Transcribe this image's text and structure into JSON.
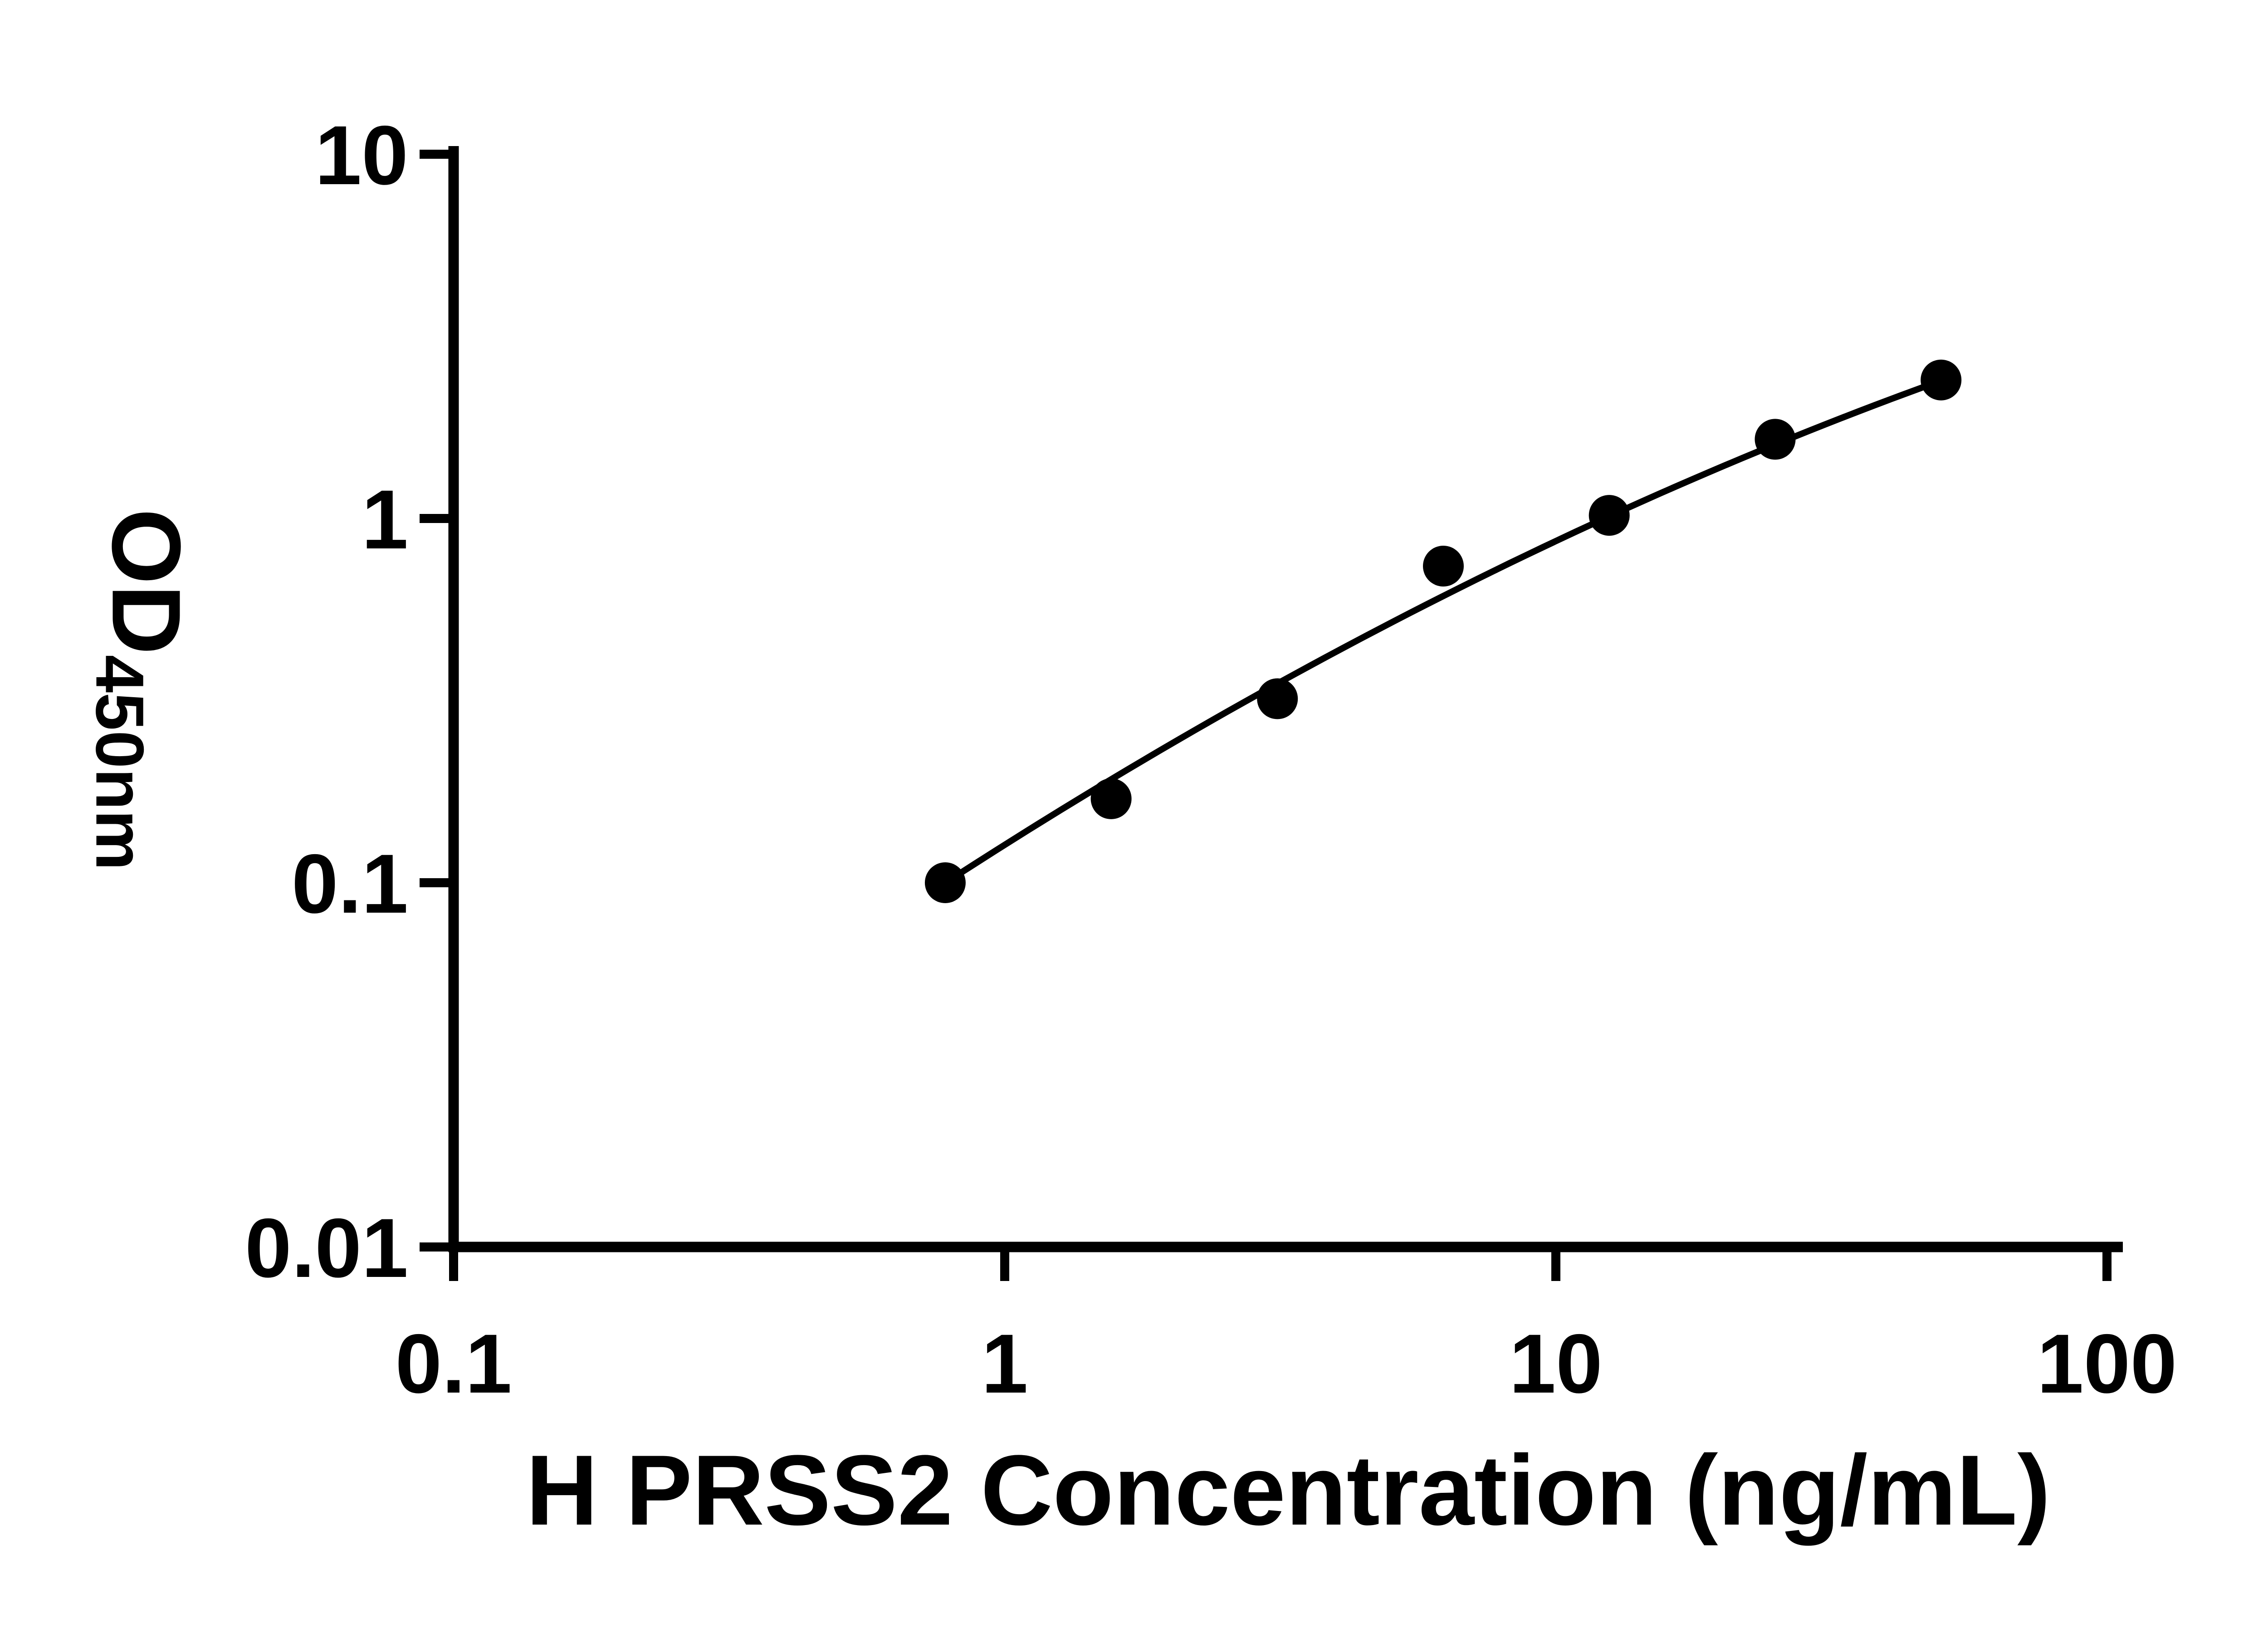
{
  "page": {
    "background": "#ffffff",
    "foreground": "#000000"
  },
  "chart_data": {
    "type": "scatter",
    "title": "",
    "xlabel": "H PRSS2 Concentration (ng/mL)",
    "ylabel_main": "OD",
    "ylabel_sub": "450nm",
    "x_scale": "log",
    "y_scale": "log",
    "xlim": [
      0.1,
      100
    ],
    "ylim": [
      0.01,
      10
    ],
    "x_tick_values": [
      0.1,
      1,
      10,
      100
    ],
    "x_tick_labels": [
      "0.1",
      "1",
      "10",
      "100"
    ],
    "y_tick_values": [
      0.01,
      0.1,
      1,
      10
    ],
    "y_tick_labels": [
      "0.01",
      "0.1",
      "1",
      "10"
    ],
    "grid": false,
    "legend": "none",
    "marker": {
      "shape": "circle",
      "color": "#000000",
      "radius_px": 45
    },
    "line_color": "#000000",
    "points": [
      {
        "x": 0.78,
        "y": 0.1
      },
      {
        "x": 1.56,
        "y": 0.17
      },
      {
        "x": 3.125,
        "y": 0.32
      },
      {
        "x": 6.25,
        "y": 0.74
      },
      {
        "x": 12.5,
        "y": 1.02
      },
      {
        "x": 25,
        "y": 1.65
      },
      {
        "x": 50,
        "y": 2.4
      }
    ],
    "fit_curve": {
      "type": "quadratic-loglog",
      "equation": "log10(y) = a + b*log10(x) + c*log10(x)^2",
      "a": -0.896,
      "b": 0.954,
      "c": -0.12,
      "log10x_min": -0.108,
      "log10x_max": 1.699
    }
  }
}
